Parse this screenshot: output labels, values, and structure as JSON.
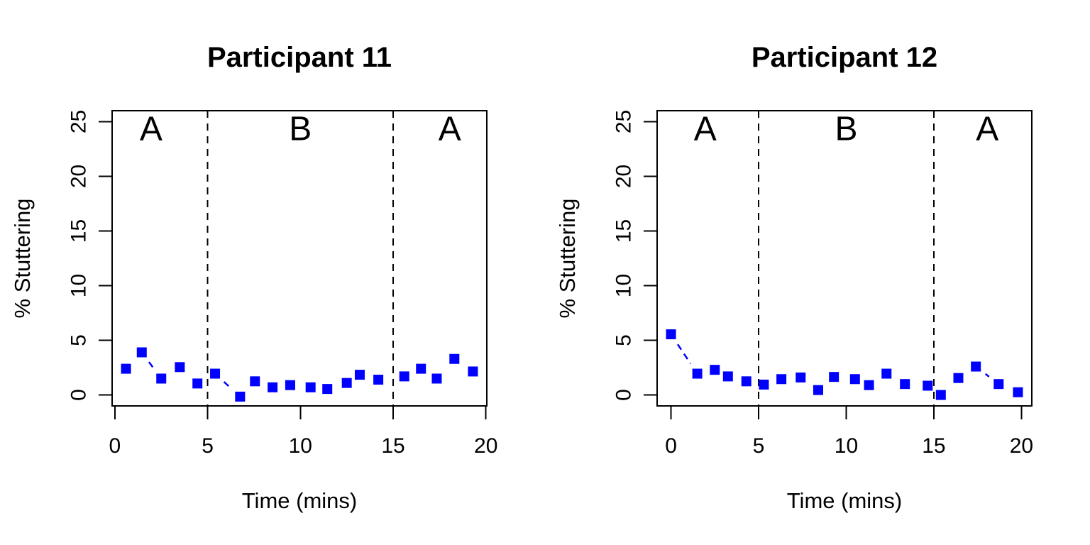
{
  "figure": {
    "background_color": "#ffffff",
    "text_color": "#000000",
    "accent_color": "#0000ff"
  },
  "chart_data": [
    {
      "type": "scatter",
      "title": "Participant 11",
      "xlabel": "Time (mins)",
      "ylabel": "% Stuttering",
      "xlim": [
        0,
        20
      ],
      "ylim": [
        0,
        25
      ],
      "xticks": [
        0,
        5,
        10,
        15,
        20
      ],
      "yticks": [
        0,
        5,
        10,
        15,
        20,
        25
      ],
      "grid": false,
      "legend": "none",
      "point_shape": "filled-square",
      "point_color": "#0000ff",
      "line_style": "dashed",
      "phase_boundaries_x": [
        5,
        15
      ],
      "phase_label_y": 24.4,
      "phase_labels": [
        {
          "text": "A",
          "x": 1.95
        },
        {
          "text": "B",
          "x": 10.0
        },
        {
          "text": "A",
          "x": 18.05
        }
      ],
      "points": [
        [
          0.6,
          2.4
        ],
        [
          1.45,
          3.9
        ],
        [
          2.5,
          1.5
        ],
        [
          3.5,
          2.55
        ],
        [
          4.45,
          1.05
        ],
        [
          5.4,
          1.95
        ],
        [
          6.75,
          -0.15
        ],
        [
          7.55,
          1.25
        ],
        [
          8.5,
          0.7
        ],
        [
          9.45,
          0.9
        ],
        [
          10.55,
          0.7
        ],
        [
          11.45,
          0.55
        ],
        [
          12.5,
          1.1
        ],
        [
          13.2,
          1.85
        ],
        [
          14.2,
          1.4
        ],
        [
          15.6,
          1.7
        ],
        [
          16.5,
          2.4
        ],
        [
          17.35,
          1.5
        ],
        [
          18.3,
          3.3
        ],
        [
          19.3,
          2.15
        ]
      ]
    },
    {
      "type": "scatter",
      "title": "Participant 12",
      "xlabel": "Time (mins)",
      "ylabel": "% Stuttering",
      "xlim": [
        0,
        20
      ],
      "ylim": [
        0,
        25
      ],
      "xticks": [
        0,
        5,
        10,
        15,
        20
      ],
      "yticks": [
        0,
        5,
        10,
        15,
        20,
        25
      ],
      "grid": false,
      "legend": "none",
      "point_shape": "filled-square",
      "point_color": "#0000ff",
      "line_style": "dashed",
      "phase_boundaries_x": [
        5,
        15
      ],
      "phase_label_y": 24.4,
      "phase_labels": [
        {
          "text": "A",
          "x": 1.95
        },
        {
          "text": "B",
          "x": 10.0
        },
        {
          "text": "A",
          "x": 18.05
        }
      ],
      "points": [
        [
          0.0,
          5.55
        ],
        [
          1.5,
          1.95
        ],
        [
          2.5,
          2.3
        ],
        [
          3.25,
          1.7
        ],
        [
          4.3,
          1.25
        ],
        [
          5.3,
          0.95
        ],
        [
          6.3,
          1.45
        ],
        [
          7.4,
          1.6
        ],
        [
          8.4,
          0.45
        ],
        [
          9.3,
          1.65
        ],
        [
          10.5,
          1.45
        ],
        [
          11.3,
          0.9
        ],
        [
          12.3,
          1.95
        ],
        [
          13.35,
          1.0
        ],
        [
          14.65,
          0.85
        ],
        [
          15.4,
          0.0
        ],
        [
          16.4,
          1.55
        ],
        [
          17.4,
          2.6
        ],
        [
          18.7,
          1.0
        ],
        [
          19.8,
          0.25
        ]
      ]
    }
  ]
}
